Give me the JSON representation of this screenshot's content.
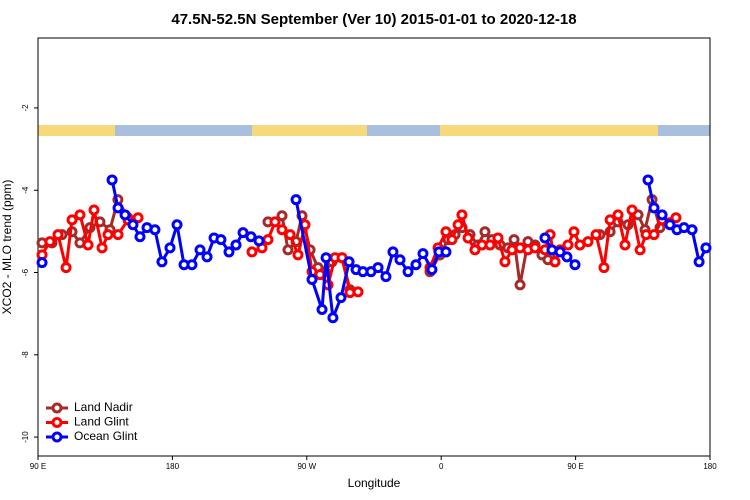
{
  "chart_data": {
    "type": "line",
    "title": "47.5N-52.5N September (Ver 10)   2015-01-01 to 2020-12-18",
    "x_label": "Longitude",
    "y_label": "XCO2 - MLO trend (ppm)",
    "xlim": [
      90,
      540
    ],
    "xticks": [
      {
        "value": 90,
        "label": "90 E"
      },
      180,
      {
        "value": 270,
        "label": "90 W"
      },
      {
        "value": 360,
        "label": "0"
      },
      {
        "value": 450,
        "label": "90 E"
      },
      {
        "value": 540,
        "label": "180"
      }
    ],
    "ylim": [
      -10.46,
      -0.3
    ],
    "yticks": [
      -2,
      -4,
      -6,
      -8,
      -10
    ],
    "grid": false,
    "legend": "bottom-left",
    "series": [
      {
        "name": "Land Nadir",
        "color": "#a52a2a",
        "x": [
          92.7,
          99.4,
          106.1,
          112.8,
          118.1,
          124.8,
          131.5,
          138.2,
          143.5,
          150.2,
          null,
          244.0,
          253.4,
          257.4,
          262.8,
          266.8,
          272.2,
          277.5,
          282.2,
          286.9,
          293.6,
          298.9,
          null,
          352.5,
          359.2,
          364.6,
          369.3,
          374.0,
          379.3,
          384.6,
          389.3,
          394.0,
          399.4,
          404.7,
          408.8,
          412.8,
          418.1,
          422.8,
          427.5,
          431.5,
          436.2,
          null,
          466.3,
          473.1,
          478.4,
          485.1,
          491.8,
          496.5,
          501.2,
          506.5
        ],
        "values": [
          -5.28,
          -5.28,
          -5.08,
          -5.01,
          -5.28,
          -4.91,
          -4.77,
          -4.96,
          -4.23,
          -4.67,
          null,
          -4.77,
          -4.62,
          -5.45,
          -5.25,
          -4.62,
          -5.45,
          -5.88,
          -5.98,
          -5.74,
          -5.64,
          -6.42,
          null,
          -5.98,
          -5.57,
          -5.2,
          -5.08,
          -4.91,
          -5.08,
          -5.33,
          -5.01,
          -5.2,
          -5.33,
          -5.4,
          -5.2,
          -6.3,
          -5.25,
          -5.33,
          -5.57,
          -5.69,
          -5.74,
          null,
          -5.08,
          -5.01,
          -4.77,
          -4.84,
          -4.6,
          -4.96,
          -4.23,
          -4.91
        ]
      },
      {
        "name": "Land Glint",
        "color": "#ff0000",
        "x": [
          92.7,
          98.0,
          103.4,
          108.8,
          112.8,
          118.1,
          123.5,
          127.5,
          132.9,
          136.9,
          143.6,
          150.3,
          157.0,
          null,
          233.3,
          240.0,
          244.0,
          248.7,
          253.4,
          258.8,
          264.1,
          268.8,
          273.5,
          278.8,
          284.2,
          288.9,
          293.6,
          298.9,
          304.3,
          null,
          352.5,
          357.9,
          363.2,
          367.2,
          371.3,
          373.9,
          378.0,
          382.6,
          387.3,
          392.7,
          398.0,
          402.7,
          407.4,
          412.8,
          418.1,
          422.8,
          429.5,
          432.9,
          436.2,
          439.6,
          444.9,
          448.9,
          452.9,
          458.3,
          463.7,
          469.0,
          473.1,
          478.4,
          483.1,
          487.8,
          493.2,
          497.2,
          502.5,
          507.9,
          517.2
        ],
        "values": [
          -5.57,
          -5.25,
          -5.08,
          -5.88,
          -4.72,
          -4.6,
          -5.33,
          -4.48,
          -5.4,
          -5.08,
          -5.08,
          -4.72,
          -4.67,
          null,
          -5.5,
          -5.4,
          -5.2,
          -4.77,
          -4.96,
          -5.08,
          -5.57,
          -4.84,
          -5.98,
          -6.05,
          -6.3,
          -5.64,
          -5.64,
          -6.49,
          -6.47,
          null,
          -5.88,
          -5.4,
          -5.01,
          -5.2,
          -4.84,
          -4.6,
          -5.16,
          -5.45,
          -5.33,
          -5.33,
          -5.16,
          -5.74,
          -5.45,
          -5.4,
          -5.45,
          -5.4,
          -5.45,
          -5.08,
          -5.74,
          -5.45,
          -5.33,
          -5.01,
          -5.33,
          -5.25,
          -5.08,
          -5.88,
          -4.72,
          -4.6,
          -5.33,
          -4.48,
          -5.45,
          -5.08,
          -5.08,
          -4.72,
          -4.67
        ]
      },
      {
        "name": "Ocean Glint",
        "color": "#0000ff",
        "x": [
          92.7,
          null,
          139.6,
          143.6,
          148.3,
          153.6,
          158.3,
          163.0,
          168.3,
          173.0,
          178.4,
          183.1,
          187.8,
          193.1,
          198.5,
          203.2,
          207.9,
          212.5,
          217.9,
          222.6,
          227.3,
          232.6,
          238.0,
          null,
          262.8,
          273.5,
          280.2,
          282.9,
          287.5,
          292.9,
          298.3,
          303.0,
          307.6,
          313.0,
          317.7,
          323.0,
          327.7,
          332.4,
          337.8,
          343.1,
          347.8,
          353.8,
          358.5,
          363.2,
          null,
          429.5,
          434.2,
          439.6,
          444.2,
          449.6,
          null,
          498.5,
          502.5,
          507.9,
          513.2,
          517.9,
          522.6,
          528.0,
          532.7,
          537.3
        ],
        "values": [
          -5.76,
          null,
          -3.75,
          -4.43,
          -4.6,
          -4.84,
          -5.13,
          -4.91,
          -4.96,
          -5.74,
          -5.4,
          -4.84,
          -5.81,
          -5.81,
          -5.45,
          -5.62,
          -5.16,
          -5.2,
          -5.5,
          -5.33,
          -5.03,
          -5.13,
          -5.23,
          null,
          -4.23,
          -6.17,
          -6.9,
          -5.64,
          -7.1,
          -6.61,
          -5.74,
          -5.93,
          -5.98,
          -5.98,
          -5.88,
          -6.1,
          -5.5,
          -5.69,
          -5.98,
          -5.81,
          -5.54,
          -5.93,
          -5.5,
          -5.5,
          null,
          -5.16,
          -5.45,
          -5.5,
          -5.62,
          -5.81,
          null,
          -3.75,
          -4.43,
          -4.6,
          -4.84,
          -4.96,
          -4.91,
          -4.96,
          -5.74,
          -5.4
        ]
      }
    ]
  }
}
